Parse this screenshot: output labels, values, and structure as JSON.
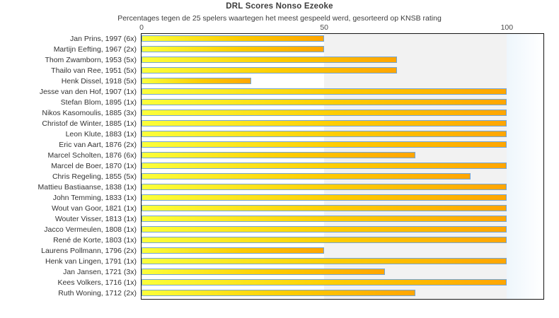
{
  "chart_data": {
    "type": "bar",
    "orientation": "horizontal",
    "title": "DRL Scores Nonso Ezeoke",
    "subtitle": "Percentages tegen de 25 spelers waartegen het meest gespeeld werd, gesorteerd op KNSB rating",
    "categories": [
      "Jan Prins, 1997 (6x)",
      "Martijn Eefting, 1967 (2x)",
      "Thom Zwamborn, 1953 (5x)",
      "Thailo van Ree, 1951 (5x)",
      "Henk Dissel, 1918 (5x)",
      "Jesse van den Hof, 1907 (1x)",
      "Stefan Blom, 1895 (1x)",
      "Nikos Kasomoulis, 1885 (3x)",
      "Christof de Winter, 1885 (1x)",
      "Leon Klute, 1883 (1x)",
      "Eric van Aart, 1876 (2x)",
      "Marcel Scholten, 1876 (6x)",
      "Marcel de Boer, 1870 (1x)",
      "Chris Regeling, 1855 (5x)",
      "Mattieu Bastiaanse, 1838 (1x)",
      "John Temming, 1833 (1x)",
      "Wout van Goor, 1821 (1x)",
      "Wouter Visser, 1813 (1x)",
      "Jacco Vermeulen, 1808 (1x)",
      "René de Korte, 1803 (1x)",
      "Laurens Pollmann, 1796 (2x)",
      "Henk van Lingen, 1791 (1x)",
      "Jan Jansen, 1721 (3x)",
      "Kees Volkers, 1716 (1x)",
      "Ruth Woning, 1712 (2x)"
    ],
    "values": [
      50,
      50,
      70,
      70,
      30,
      100,
      100,
      100,
      100,
      100,
      100,
      75,
      100,
      90,
      100,
      100,
      100,
      100,
      100,
      100,
      50,
      100,
      66.67,
      100,
      75
    ],
    "xlabel": "",
    "ylabel": "",
    "xlim": [
      0,
      110
    ],
    "ticks": [
      0,
      50,
      100
    ],
    "grid": false,
    "legend_position": "none",
    "colors": {
      "bar_gradient_start": "#fbff3a",
      "bar_gradient_mid": "#fecb00",
      "bar_gradient_end": "#ffa502",
      "bar_border": "#72a5d8",
      "band_mid": "#f2f2f2",
      "band_right_start": "#eef6fc",
      "band_right_end": "#ffffff",
      "plot_border": "#161616",
      "text": "#3c3c3c"
    }
  }
}
